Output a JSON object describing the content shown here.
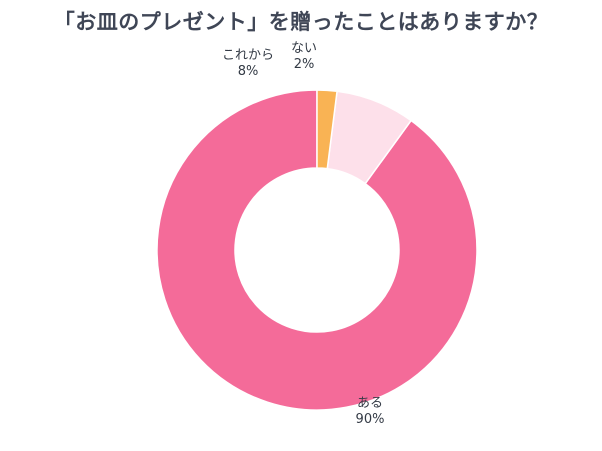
{
  "chart_data": {
    "type": "pie",
    "title": "「お皿のプレゼント」を贈ったことはありますか？",
    "donut": true,
    "slices": [
      {
        "label": "ある",
        "value": 90,
        "percent_label": "90%",
        "color": "#f46b99"
      },
      {
        "label": "これから",
        "value": 8,
        "percent_label": "8%",
        "color": "#fde0ea"
      },
      {
        "label": "ない",
        "value": 2,
        "percent_label": "2%",
        "color": "#f9b354"
      }
    ]
  }
}
